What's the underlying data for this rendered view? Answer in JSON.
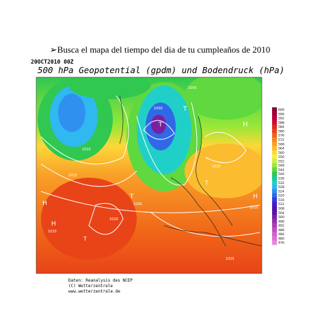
{
  "slide": {
    "title": "Busca el mapa del tiempo del dia de tu cumpleaños de 2010"
  },
  "map": {
    "timestamp": "20OCT2010 00Z",
    "heading": "500 hPa Geopotential (gpdm) und Bodendruck (hPa)",
    "labels": [
      "H",
      "H",
      "H",
      "H",
      "T",
      "T",
      "T",
      "T",
      "T",
      "1000",
      "1005",
      "1010",
      "1015",
      "1020",
      "1025",
      "1030",
      "1015",
      "1020",
      "1025"
    ],
    "legend": [
      {
        "value": 600,
        "color": "#8a003a"
      },
      {
        "value": 596,
        "color": "#a0003c"
      },
      {
        "value": 592,
        "color": "#b8003a"
      },
      {
        "value": 588,
        "color": "#cc1030"
      },
      {
        "value": 584,
        "color": "#dc2a20"
      },
      {
        "value": 580,
        "color": "#e84418"
      },
      {
        "value": 576,
        "color": "#f06418"
      },
      {
        "value": 572,
        "color": "#f48420"
      },
      {
        "value": 568,
        "color": "#f8a028"
      },
      {
        "value": 564,
        "color": "#fcbc30"
      },
      {
        "value": 560,
        "color": "#fcd838"
      },
      {
        "value": 556,
        "color": "#f0f040"
      },
      {
        "value": 552,
        "color": "#c8f040"
      },
      {
        "value": 548,
        "color": "#98e838"
      },
      {
        "value": 544,
        "color": "#60d840"
      },
      {
        "value": 540,
        "color": "#30c850"
      },
      {
        "value": 536,
        "color": "#20c890"
      },
      {
        "value": 532,
        "color": "#20d0c8"
      },
      {
        "value": 528,
        "color": "#30b8f0"
      },
      {
        "value": 524,
        "color": "#3090f0"
      },
      {
        "value": 520,
        "color": "#3068e8"
      },
      {
        "value": 516,
        "color": "#3040d8"
      },
      {
        "value": 512,
        "color": "#4020c8"
      },
      {
        "value": 508,
        "color": "#5010b0"
      },
      {
        "value": 504,
        "color": "#6010a0"
      },
      {
        "value": 500,
        "color": "#7820a0"
      },
      {
        "value": 496,
        "color": "#9030b0"
      },
      {
        "value": 492,
        "color": "#a840b8"
      },
      {
        "value": 488,
        "color": "#c050c0"
      },
      {
        "value": 484,
        "color": "#d060c8"
      },
      {
        "value": 480,
        "color": "#e070d0"
      },
      {
        "value": 476,
        "color": "#e888d8"
      }
    ]
  },
  "footer": {
    "lines": [
      "Daten: Reanalysis des NCEP",
      "(C) Wetterzentrale",
      "www.wetterzentrale.de"
    ]
  }
}
